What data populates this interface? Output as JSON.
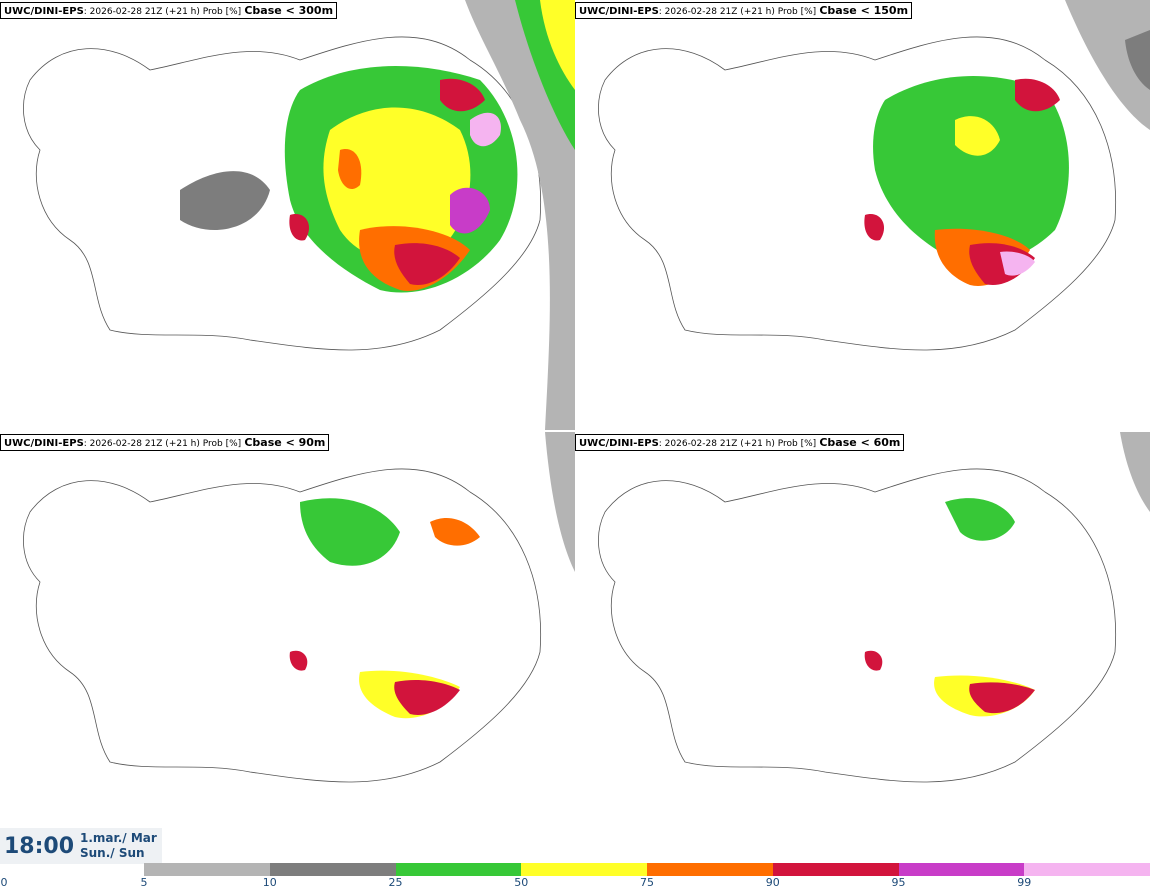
{
  "panels": [
    {
      "model": "UWC/DINI-EPS",
      "meta": ": 2026-02-28 21Z (+21 h) Prob [%]",
      "variable": "Cbase < 300m"
    },
    {
      "model": "UWC/DINI-EPS",
      "meta": ": 2026-02-28 21Z (+21 h) Prob [%]",
      "variable": "Cbase < 150m"
    },
    {
      "model": "UWC/DINI-EPS",
      "meta": ": 2026-02-28 21Z (+21 h) Prob [%]",
      "variable": "Cbase < 90m"
    },
    {
      "model": "UWC/DINI-EPS",
      "meta": ": 2026-02-28 21Z (+21 h) Prob [%]",
      "variable": "Cbase < 60m"
    }
  ],
  "valid_time": {
    "time": "18:00",
    "date": "1.mar./ Mar",
    "weekday": "Sun./ Sun"
  },
  "legend": {
    "ticks": [
      "0",
      "5",
      "10",
      "25",
      "50",
      "75",
      "90",
      "95",
      "99"
    ],
    "colors": [
      "#ffffff",
      "#b4b4b4",
      "#7d7d7d",
      "#37c837",
      "#ffff28",
      "#ff6e00",
      "#d2143c",
      "#c83cc8",
      "#f5b4f0"
    ]
  }
}
